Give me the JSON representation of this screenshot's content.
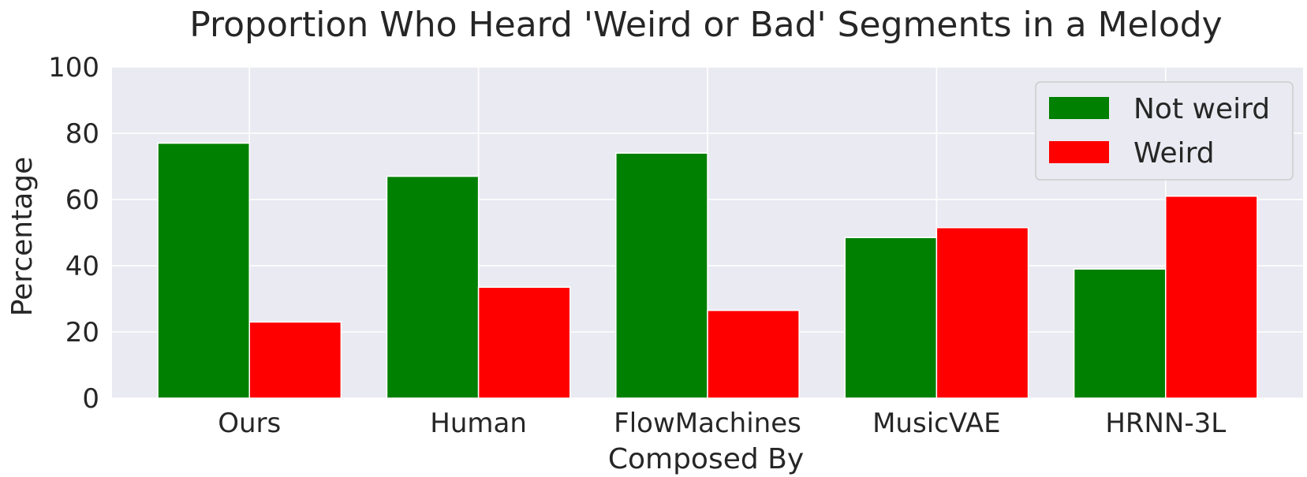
{
  "chart_data": {
    "type": "bar",
    "title": "Proportion Who Heard 'Weird or Bad' Segments in a Melody",
    "xlabel": "Composed By",
    "ylabel": "Percentage",
    "categories": [
      "Ours",
      "Human",
      "FlowMachines",
      "MusicVAE",
      "HRNN-3L"
    ],
    "series": [
      {
        "name": "Not weird",
        "color": "#008000",
        "values": [
          77,
          67,
          74,
          48.5,
          39
        ]
      },
      {
        "name": "Weird",
        "color": "#ff0000",
        "values": [
          23,
          33.5,
          26.5,
          51.5,
          61
        ]
      }
    ],
    "ylim": [
      0,
      100
    ],
    "yticks": [
      "0",
      "20",
      "40",
      "60",
      "80",
      "100"
    ],
    "grid": true,
    "legend_position": "top-right",
    "plot_background": "#eaeaf2"
  }
}
